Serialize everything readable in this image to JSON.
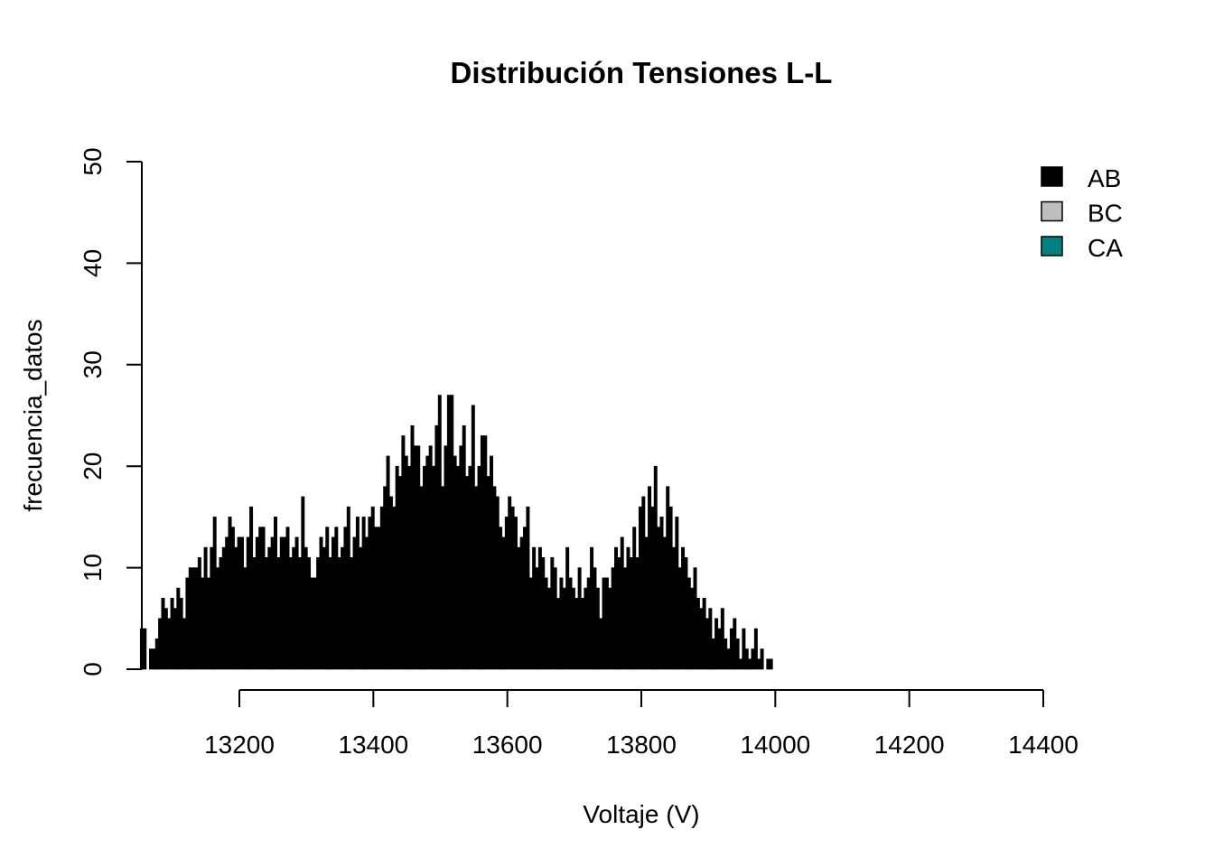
{
  "chart_data": {
    "type": "bar",
    "title": "Distribución Tensiones L-L",
    "xlabel": "Voltaje (V)",
    "ylabel": "frecuencia_datos",
    "xlim": [
      13050,
      14400
    ],
    "ylim": [
      0,
      50
    ],
    "x_ticks": [
      13200,
      13400,
      13600,
      13800,
      14000,
      14200,
      14400
    ],
    "x_tick_labels": [
      "13200",
      "13400",
      "13600",
      "13800",
      "14000",
      "14200",
      "14400"
    ],
    "y_ticks": [
      0,
      10,
      20,
      30,
      40,
      50
    ],
    "y_tick_labels": [
      "0",
      "10",
      "20",
      "30",
      "40",
      "50"
    ],
    "grid": false,
    "legend_position": "top-right",
    "legend": [
      {
        "label": "AB",
        "color": "#000000"
      },
      {
        "label": "BC",
        "color": "#BEBEBE"
      },
      {
        "label": "CA",
        "color": "#008080"
      }
    ],
    "series": [
      {
        "name": "AB",
        "color": "#000000",
        "bin_range": [
          13052,
          13996
        ],
        "values": [
          4,
          4,
          0,
          2,
          2,
          3,
          5,
          7,
          6,
          5,
          7,
          6,
          8,
          7,
          5,
          9,
          10,
          10,
          10,
          11,
          9,
          12,
          9,
          12,
          15,
          10,
          11,
          12,
          13,
          15,
          14,
          12,
          13,
          13,
          10,
          13,
          16,
          11,
          13,
          14,
          14,
          11,
          12,
          13,
          15,
          11,
          13,
          13,
          14,
          11,
          12,
          13,
          11,
          17,
          12,
          11,
          9,
          9,
          11,
          13,
          12,
          14,
          11,
          13,
          14,
          11,
          12,
          14,
          16,
          11,
          13,
          15,
          12,
          15,
          13,
          15,
          16,
          14,
          14,
          16,
          18,
          21,
          17,
          16,
          20,
          19,
          23,
          21,
          20,
          24,
          22,
          22,
          18,
          20,
          21,
          22,
          20,
          24,
          27,
          18,
          22,
          27,
          27,
          21,
          20,
          22,
          24,
          19,
          20,
          26,
          18,
          20,
          23,
          23,
          19,
          21,
          18,
          17,
          14,
          13,
          15,
          17,
          16,
          15,
          12,
          13,
          14,
          16,
          9,
          12,
          10,
          12,
          11,
          9,
          8,
          11,
          10,
          7,
          9,
          8,
          12,
          9,
          8,
          7,
          10,
          7,
          8,
          9,
          12,
          10,
          8,
          5,
          9,
          9,
          8,
          10,
          12,
          11,
          13,
          10,
          12,
          11,
          14,
          11,
          16,
          17,
          13,
          18,
          16,
          20,
          14,
          15,
          13,
          18,
          16,
          12,
          15,
          10,
          12,
          11,
          9,
          8,
          10,
          7,
          6,
          7,
          5,
          6,
          3,
          5,
          4,
          6,
          3,
          2,
          4,
          5,
          3,
          1,
          4,
          2,
          1,
          2,
          4,
          1,
          2,
          0,
          1,
          1
        ]
      }
    ]
  }
}
